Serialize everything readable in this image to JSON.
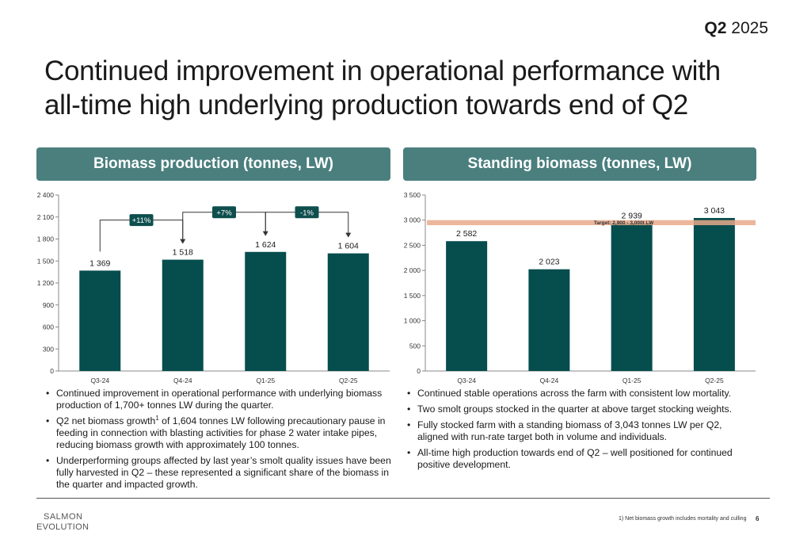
{
  "header": {
    "period_bold": "Q2",
    "period_year": "2025",
    "title": "Continued improvement in operational performance with all-time high underlying production towards end of Q2"
  },
  "left_panel": {
    "heading": "Biomass production (tonnes, LW)",
    "bullets": [
      {
        "text": "Continued improvement in operational performance with underlying biomass production of 1,700+ tonnes LW during the quarter."
      },
      {
        "pre": "Q2 net biomass growth",
        "sup": "1",
        "post": " of 1,604 tonnes LW following precautionary pause in feeding in connection with blasting activities for phase 2 water intake pipes, reducing biomass growth with approximately 100 tonnes."
      },
      {
        "text": "Underperforming groups affected by last year’s smolt quality issues have been fully harvested in Q2 – these represented a significant share of the biomass in the quarter and impacted growth."
      }
    ]
  },
  "right_panel": {
    "heading": "Standing biomass (tonnes, LW)",
    "bullets": [
      {
        "text": "Continued stable operations across the farm with consistent low mortality."
      },
      {
        "text": "Two smolt groups stocked in the quarter at above target stocking weights."
      },
      {
        "text": "Fully stocked farm with a standing biomass of 3,043 tonnes LW per Q2, aligned with run-rate target both in volume and individuals."
      },
      {
        "text": "All-time high production towards end of Q2 – well positioned for continued positive development."
      }
    ]
  },
  "footer": {
    "logo_line1": "SALMON",
    "logo_line2": "EVOLUTION",
    "footnote": "1) Net biomass growth includes mortality and culling",
    "page_number": "6"
  },
  "colors": {
    "bar": "#064d4d",
    "header_bg": "#4a7f7e",
    "target_band": "#e8a98a",
    "badge": "#0e4f4e"
  },
  "chart_data": [
    {
      "type": "bar",
      "title": "Biomass production (tonnes, LW)",
      "categories": [
        "Q3-24",
        "Q4-24",
        "Q1-25",
        "Q2-25"
      ],
      "values": [
        1369,
        1518,
        1624,
        1604
      ],
      "value_labels": [
        "1 369",
        "1 518",
        "1 624",
        "1 604"
      ],
      "ylim": [
        0,
        2400
      ],
      "yticks": [
        0,
        300,
        600,
        900,
        1200,
        1500,
        1800,
        2100,
        2400
      ],
      "ytick_labels": [
        "0",
        "300",
        "600",
        "900",
        "1 200",
        "1 500",
        "1 800",
        "2 100",
        "2 400"
      ],
      "changes": [
        {
          "from": 0,
          "to": 1,
          "label": "+11%"
        },
        {
          "from": 1,
          "to": 2,
          "label": "+7%"
        },
        {
          "from": 2,
          "to": 3,
          "label": "-1%"
        }
      ],
      "grid": false
    },
    {
      "type": "bar",
      "title": "Standing biomass (tonnes, LW)",
      "categories": [
        "Q3-24",
        "Q4-24",
        "Q1-25",
        "Q2-25"
      ],
      "values": [
        2582,
        2023,
        2939,
        3043
      ],
      "value_labels": [
        "2 582",
        "2 023",
        "2 939",
        "3 043"
      ],
      "ylim": [
        0,
        3500
      ],
      "yticks": [
        0,
        500,
        1000,
        1500,
        2000,
        2500,
        3000,
        3500
      ],
      "ytick_labels": [
        "0",
        "500",
        "1 000",
        "1 500",
        "2 000",
        "2 500",
        "3 000",
        "3 500"
      ],
      "target_band": {
        "from": 2900,
        "to": 3000,
        "label": "Target: 2,900 - 3,000t LW"
      },
      "grid": false
    }
  ]
}
